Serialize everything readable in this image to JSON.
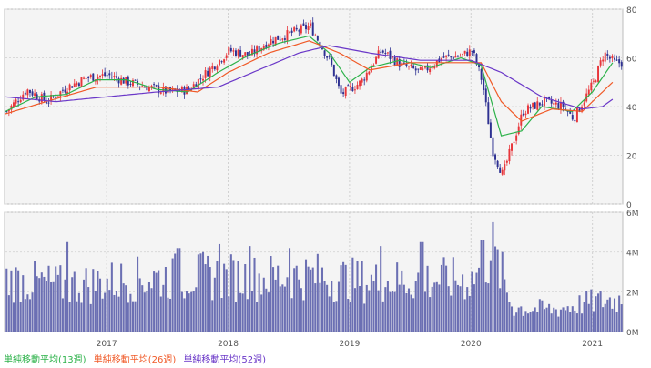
{
  "chart_data": [
    {
      "type": "candlestick",
      "name": "price",
      "ylim": [
        0,
        80
      ],
      "yticks": [
        "0",
        "20",
        "40",
        "60",
        "80"
      ],
      "xticks": [
        {
          "label": "2017",
          "date": "2017-01"
        },
        {
          "label": "2018",
          "date": "2018-01"
        },
        {
          "label": "2019",
          "date": "2019-01"
        },
        {
          "label": "2020",
          "date": "2020-01"
        },
        {
          "label": "2021",
          "date": "2021-01"
        }
      ],
      "date_range": [
        "2016-03",
        "2021-03"
      ],
      "grid": true,
      "colors": {
        "up": "#e8363b",
        "down": "#2e3192",
        "ma13": "#2db24a",
        "ma26": "#f05a28",
        "ma52": "#6a37c8"
      },
      "close_path": [
        [
          "2016-03",
          38
        ],
        [
          "2016-05",
          47
        ],
        [
          "2016-07",
          42
        ],
        [
          "2016-09",
          48
        ],
        [
          "2016-11",
          52
        ],
        [
          "2017-01",
          53
        ],
        [
          "2017-03",
          50
        ],
        [
          "2017-05",
          48
        ],
        [
          "2017-07",
          46
        ],
        [
          "2017-09",
          47
        ],
        [
          "2017-11",
          55
        ],
        [
          "2018-01",
          63
        ],
        [
          "2018-03",
          61
        ],
        [
          "2018-05",
          67
        ],
        [
          "2018-07",
          70
        ],
        [
          "2018-09",
          73
        ],
        [
          "2018-11",
          58
        ],
        [
          "2018-12",
          45
        ],
        [
          "2019-02",
          50
        ],
        [
          "2019-04",
          63
        ],
        [
          "2019-06",
          57
        ],
        [
          "2019-08",
          54
        ],
        [
          "2019-10",
          60
        ],
        [
          "2019-12",
          61
        ],
        [
          "2020-01",
          63
        ],
        [
          "2020-02",
          50
        ],
        [
          "2020-03",
          22
        ],
        [
          "2020-04",
          12
        ],
        [
          "2020-05",
          25
        ],
        [
          "2020-06",
          38
        ],
        [
          "2020-08",
          42
        ],
        [
          "2020-10",
          40
        ],
        [
          "2020-11",
          35
        ],
        [
          "2021-01",
          50
        ],
        [
          "2021-02",
          62
        ],
        [
          "2021-03",
          58
        ]
      ],
      "ma13_path": [
        [
          "2016-03",
          38
        ],
        [
          "2016-06",
          44
        ],
        [
          "2016-09",
          45
        ],
        [
          "2016-12",
          51
        ],
        [
          "2017-03",
          51
        ],
        [
          "2017-06",
          47
        ],
        [
          "2017-09",
          46
        ],
        [
          "2017-12",
          54
        ],
        [
          "2018-03",
          61
        ],
        [
          "2018-06",
          66
        ],
        [
          "2018-09",
          69
        ],
        [
          "2018-11",
          62
        ],
        [
          "2019-01",
          50
        ],
        [
          "2019-03",
          56
        ],
        [
          "2019-06",
          59
        ],
        [
          "2019-09",
          56
        ],
        [
          "2019-12",
          60
        ],
        [
          "2020-02",
          57
        ],
        [
          "2020-04",
          28
        ],
        [
          "2020-06",
          30
        ],
        [
          "2020-08",
          40
        ],
        [
          "2020-11",
          38
        ],
        [
          "2021-01",
          46
        ],
        [
          "2021-03",
          58
        ]
      ],
      "ma26_path": [
        [
          "2016-03",
          37
        ],
        [
          "2016-07",
          42
        ],
        [
          "2016-12",
          48
        ],
        [
          "2017-06",
          48
        ],
        [
          "2017-10",
          46
        ],
        [
          "2018-01",
          54
        ],
        [
          "2018-05",
          62
        ],
        [
          "2018-09",
          67
        ],
        [
          "2018-12",
          62
        ],
        [
          "2019-03",
          55
        ],
        [
          "2019-07",
          58
        ],
        [
          "2019-11",
          58
        ],
        [
          "2020-02",
          58
        ],
        [
          "2020-04",
          42
        ],
        [
          "2020-06",
          34
        ],
        [
          "2020-09",
          39
        ],
        [
          "2020-12",
          38
        ],
        [
          "2021-03",
          50
        ]
      ],
      "ma52_path": [
        [
          "2016-03",
          44
        ],
        [
          "2016-08",
          42
        ],
        [
          "2017-01",
          44
        ],
        [
          "2017-06",
          46
        ],
        [
          "2017-12",
          48
        ],
        [
          "2018-04",
          55
        ],
        [
          "2018-08",
          62
        ],
        [
          "2018-11",
          65
        ],
        [
          "2019-03",
          62
        ],
        [
          "2019-08",
          59
        ],
        [
          "2020-01",
          59
        ],
        [
          "2020-04",
          54
        ],
        [
          "2020-08",
          44
        ],
        [
          "2020-12",
          39
        ],
        [
          "2021-02",
          40
        ],
        [
          "2021-03",
          43
        ]
      ]
    },
    {
      "type": "bar",
      "name": "volume",
      "ylim": [
        0,
        6
      ],
      "yticks": [
        "0M",
        "2M",
        "4M",
        "6M"
      ],
      "color": "#6b6fb3",
      "level_path": [
        [
          "2016-03",
          2.6
        ],
        [
          "2016-09",
          2.3
        ],
        [
          "2017-03",
          2.6
        ],
        [
          "2017-09",
          2.8
        ],
        [
          "2018-03",
          2.7
        ],
        [
          "2018-09",
          2.8
        ],
        [
          "2019-03",
          2.5
        ],
        [
          "2019-09",
          2.6
        ],
        [
          "2020-01",
          2.6
        ],
        [
          "2020-03",
          4.0
        ],
        [
          "2020-05",
          1.2
        ],
        [
          "2020-09",
          1.1
        ],
        [
          "2021-01",
          1.5
        ],
        [
          "2021-03",
          1.6
        ]
      ],
      "peaks": [
        [
          "2016-09",
          4.5
        ],
        [
          "2017-08",
          4.2
        ],
        [
          "2017-12",
          4.4
        ],
        [
          "2018-03",
          4.3
        ],
        [
          "2018-07",
          4.2
        ],
        [
          "2019-04",
          4.3
        ],
        [
          "2019-08",
          4.5
        ],
        [
          "2020-03",
          5.5
        ],
        [
          "2020-02",
          4.6
        ],
        [
          "2020-04",
          4.0
        ]
      ]
    }
  ],
  "legend": [
    {
      "label": "単純移動平均(13週)",
      "color": "#2db24a"
    },
    {
      "label": "単純移動平均(26週)",
      "color": "#f05a28"
    },
    {
      "label": "単純移動平均(52週)",
      "color": "#6a37c8"
    }
  ]
}
